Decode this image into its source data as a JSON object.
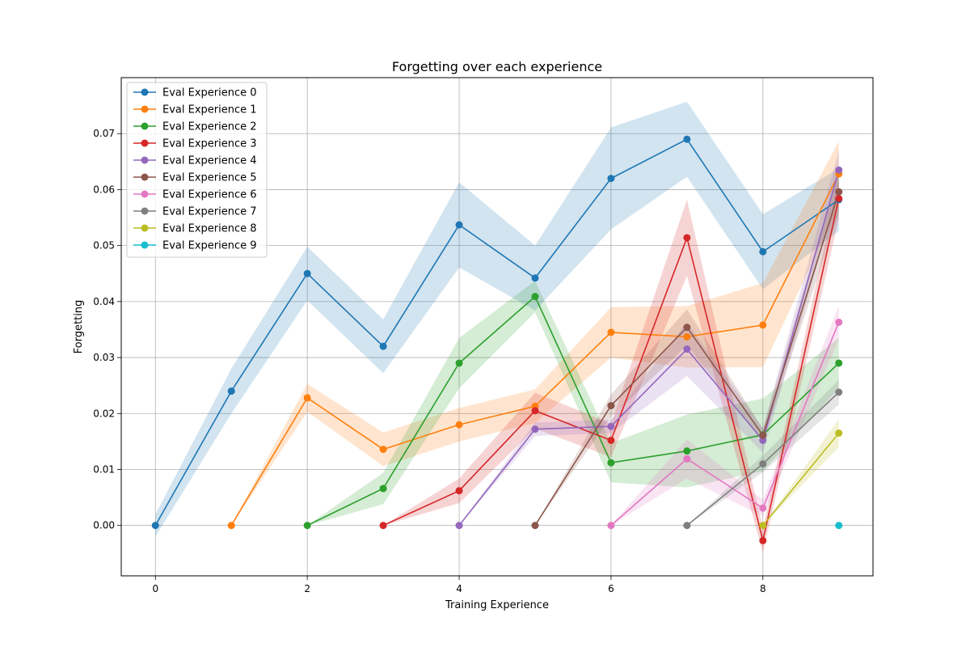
{
  "chart_data": {
    "type": "line",
    "title": "Forgetting over each experience",
    "xlabel": "Training Experience",
    "ylabel": "Forgetting",
    "xlim": [
      -0.45,
      9.45
    ],
    "ylim": [
      -0.009,
      0.08
    ],
    "xticks": [
      0,
      2,
      4,
      6,
      8
    ],
    "xtick_labels": [
      "0",
      "2",
      "4",
      "6",
      "8"
    ],
    "yticks": [
      0.0,
      0.01,
      0.02,
      0.03,
      0.04,
      0.05,
      0.06,
      0.07
    ],
    "ytick_labels": [
      "0.00",
      "0.01",
      "0.02",
      "0.03",
      "0.04",
      "0.05",
      "0.06",
      "0.07"
    ],
    "grid": true,
    "legend_position": "top-left",
    "series": [
      {
        "name": "Eval Experience 0",
        "color": "#1f77b4",
        "x": [
          0,
          1,
          2,
          3,
          4,
          5,
          6,
          7,
          8,
          9
        ],
        "values": [
          0.0,
          0.024,
          0.045,
          0.032,
          0.0537,
          0.0442,
          0.062,
          0.069,
          0.0489,
          0.0582
        ],
        "band": [
          0.002,
          0.004,
          0.0048,
          0.0048,
          0.0076,
          0.0058,
          0.0091,
          0.0067,
          0.0067,
          0.0056
        ]
      },
      {
        "name": "Eval Experience 1",
        "color": "#ff7f0e",
        "x": [
          1,
          2,
          3,
          4,
          5,
          6,
          7,
          8,
          9
        ],
        "values": [
          0.0,
          0.0228,
          0.0136,
          0.018,
          0.0213,
          0.0345,
          0.0337,
          0.0358,
          0.0628
        ],
        "band": [
          0.0,
          0.0025,
          0.003,
          0.003,
          0.003,
          0.0045,
          0.0055,
          0.0075,
          0.0058
        ]
      },
      {
        "name": "Eval Experience 2",
        "color": "#2ca02c",
        "x": [
          2,
          3,
          4,
          5,
          6,
          7,
          8,
          9
        ],
        "values": [
          0.0,
          0.0066,
          0.029,
          0.0409,
          0.0112,
          0.0133,
          0.0162,
          0.029
        ],
        "band": [
          0.0,
          0.0028,
          0.0045,
          0.0028,
          0.0035,
          0.0065,
          0.0065,
          0.0045
        ]
      },
      {
        "name": "Eval Experience 3",
        "color": "#d62728",
        "x": [
          3,
          4,
          5,
          6,
          7,
          8,
          9
        ],
        "values": [
          0.0,
          0.0062,
          0.0205,
          0.0152,
          0.0514,
          -0.0027,
          0.0584
        ],
        "band": [
          0.0,
          0.0022,
          0.0032,
          0.003,
          0.0068,
          0.0022,
          0.0035
        ]
      },
      {
        "name": "Eval Experience 4",
        "color": "#9467bd",
        "x": [
          4,
          5,
          6,
          7,
          8,
          9
        ],
        "values": [
          0.0,
          0.0172,
          0.0177,
          0.0315,
          0.0152,
          0.0635
        ],
        "band": [
          0.0,
          0.0012,
          0.0012,
          0.0048,
          0.0022,
          0.0035
        ]
      },
      {
        "name": "Eval Experience 5",
        "color": "#8c564b",
        "x": [
          5,
          6,
          7,
          8,
          9
        ],
        "values": [
          0.0,
          0.0214,
          0.0354,
          0.0161,
          0.0596
        ],
        "band": [
          0.0,
          0.002,
          0.0032,
          0.0012,
          0.0038
        ]
      },
      {
        "name": "Eval Experience 6",
        "color": "#e377c2",
        "x": [
          6,
          7,
          8,
          9
        ],
        "values": [
          0.0,
          0.0119,
          0.0031,
          0.0363
        ],
        "band": [
          0.0,
          0.0035,
          0.0015,
          0.003
        ]
      },
      {
        "name": "Eval Experience 7",
        "color": "#7f7f7f",
        "x": [
          7,
          8,
          9
        ],
        "values": [
          0.0,
          0.011,
          0.0238
        ],
        "band": [
          0.0,
          0.0015,
          0.0022
        ]
      },
      {
        "name": "Eval Experience 8",
        "color": "#bcbd22",
        "x": [
          8,
          9
        ],
        "values": [
          0.0,
          0.0165
        ],
        "band": [
          0.0,
          0.0025
        ]
      },
      {
        "name": "Eval Experience 9",
        "color": "#17becf",
        "x": [
          9
        ],
        "values": [
          0.0
        ],
        "band": [
          0.0
        ]
      }
    ]
  }
}
